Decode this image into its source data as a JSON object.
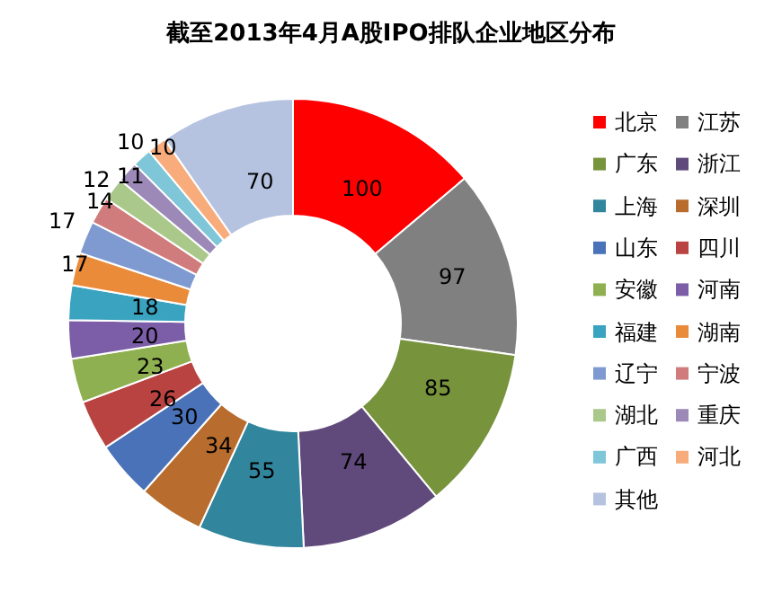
{
  "chart_data": {
    "type": "donut",
    "title": "截至2013年4月A股IPO排队企业地区分布",
    "categories": [
      "北京",
      "江苏",
      "广东",
      "浙江",
      "上海",
      "深圳",
      "山东",
      "四川",
      "安徽",
      "河南",
      "福建",
      "湖南",
      "辽宁",
      "宁波",
      "湖北",
      "重庆",
      "广西",
      "河北",
      "其他"
    ],
    "values": [
      100,
      97,
      85,
      74,
      55,
      34,
      30,
      26,
      23,
      20,
      18,
      17,
      17,
      14,
      12,
      11,
      10,
      10,
      70
    ],
    "colors": [
      "#ff0000",
      "#808080",
      "#77933c",
      "#604a7b",
      "#31859c",
      "#b86d2e",
      "#4a72b8",
      "#b94340",
      "#8fb050",
      "#7b5ea7",
      "#3aa3c0",
      "#ea8b3a",
      "#7f9ad0",
      "#d07c7c",
      "#a9c88a",
      "#9d89b8",
      "#7fc6d8",
      "#f8ac7c",
      "#b5c3e0"
    ],
    "data_labels": true,
    "legend": "right"
  }
}
